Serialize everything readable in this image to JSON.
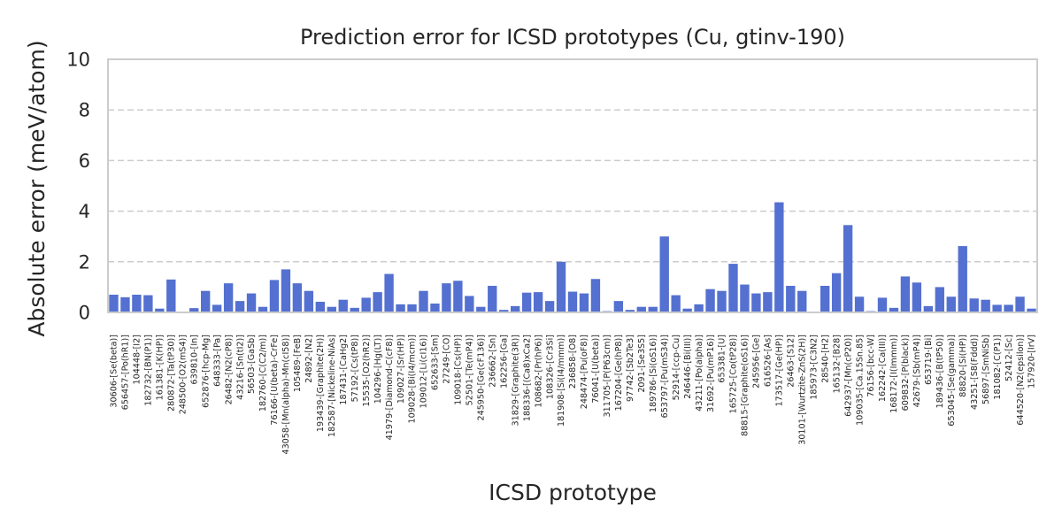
{
  "chart_data": {
    "type": "bar",
    "title": "Prediction error for ICSD prototypes (Cu, gtinv-190)",
    "xlabel": "ICSD prototype",
    "ylabel": "Absolute error (meV/atom)",
    "ylim": [
      0,
      10
    ],
    "yticks": [
      "0",
      "2",
      "4",
      "6",
      "8",
      "10"
    ],
    "grid": true,
    "color": "#5470d0",
    "categories": [
      "30606-[Se(beta)]",
      "656457-[Po(hR1)]",
      "104448-[I2]",
      "182732-[BN(P1)]",
      "161381-[K(HP)]",
      "280872-[Ta(tP30)]",
      "248500-[O2(mS4)]",
      "639810-[In]",
      "652876-[hcp-Mg]",
      "648333-[Pa]",
      "26482-[N2(cP8)]",
      "43216-[Sn(tI2)]",
      "56503-[GaSb]",
      "182760-[C(C2/m)]",
      "76166-[U(beta)-CrFe]",
      "43058-[Mn(alpha)-Mn(cI58)]",
      "105489-[FeB]",
      "24892-[N2]",
      "193439-[Graphite(2H)]",
      "182587-[Nickeline-NiAs]",
      "187431-[CaHg2]",
      "57192-[Cs(tP8)]",
      "15535-[O2(hR2)]",
      "104296-[Hg(LT)]",
      "41979-[Diamond-C(cF8)]",
      "109027-[Sr(HP)]",
      "109028-[Bi(I4/mcm)]",
      "109012-[Li(cI16)]",
      "652633-[Sm]",
      "27249-[CO]",
      "109018-[Cs(HP)]",
      "52501-[Te(mP4)]",
      "245950-[Ge(cF136)]",
      "236662-[Sn]",
      "162256-[Ga]",
      "31829-[Graphite(3R)]",
      "188336-[(Ca8)xCa2]",
      "108682-[Pr(hP6)]",
      "108326-[Cr3Si]",
      "181908-[Si(I4/mmm)]",
      "236858-[O8]",
      "248474-[Pu(oF8)]",
      "76041-[U(beta)]",
      "311705-[P(P63cm)]",
      "167204-[Ge(hP8)]",
      "97742-[Sb2Te3]",
      "2091-[Se3S5]",
      "189786-[Si(oS16)]",
      "653797-[Pu(mS34)]",
      "52914-[ccp-Cu]",
      "246446-[Bi(III)]",
      "43211-[Po(alpha)]",
      "31692-[Pu(mP16)]",
      "653381-[U]",
      "165725-[Co(tP28)]",
      "88815-[Graphite(oS16)]",
      "245956-[Ge]",
      "616526-[As]",
      "173517-[Ge(HP)]",
      "26463-[S12]",
      "30101-[Wurtzite-ZnS(2H)]",
      "185973-[C3N2]",
      "28540-[H2]",
      "165132-[B28]",
      "642937-[Mn(cP20)]",
      "109035-[Ca.15Sn.85]",
      "76156-[bcc-W]",
      "162242-[Ca(III)]",
      "168172-[I(Immm)]",
      "609832-[P(black)]",
      "42679-[Sb(mP4)]",
      "653719-[Bi]",
      "189436-[B(tP50)]",
      "653045-[Se(gamma)]",
      "88820-[Si(HP)]",
      "43251-[S8(Fddd)]",
      "56897-[SmNiSb]",
      "181082-[C(P1)]",
      "52412-[Sc]",
      "644520-[N2(epsilon)]",
      "157920-[IrV]"
    ],
    "values": [
      0.7,
      0.6,
      0.7,
      0.68,
      0.15,
      1.3,
      0.02,
      0.17,
      0.85,
      0.3,
      1.15,
      0.45,
      0.75,
      0.22,
      1.28,
      1.7,
      1.15,
      0.85,
      0.42,
      0.22,
      0.5,
      0.18,
      0.58,
      0.8,
      1.52,
      0.32,
      0.32,
      0.85,
      0.35,
      1.15,
      1.25,
      0.65,
      0.22,
      1.05,
      0.1,
      0.25,
      0.78,
      0.8,
      0.45,
      2.0,
      0.82,
      0.75,
      1.32,
      0.05,
      0.45,
      0.1,
      0.22,
      0.22,
      3.0,
      0.68,
      0.15,
      0.32,
      0.92,
      0.85,
      1.92,
      1.1,
      0.75,
      0.8,
      4.35,
      1.05,
      0.85,
      0.02,
      1.05,
      1.55,
      3.45,
      0.62,
      0.05,
      0.58,
      0.18,
      1.42,
      1.18,
      0.25,
      1.0,
      0.62,
      2.62,
      0.55,
      0.5,
      0.3,
      0.3,
      0.62,
      0.15
    ]
  }
}
